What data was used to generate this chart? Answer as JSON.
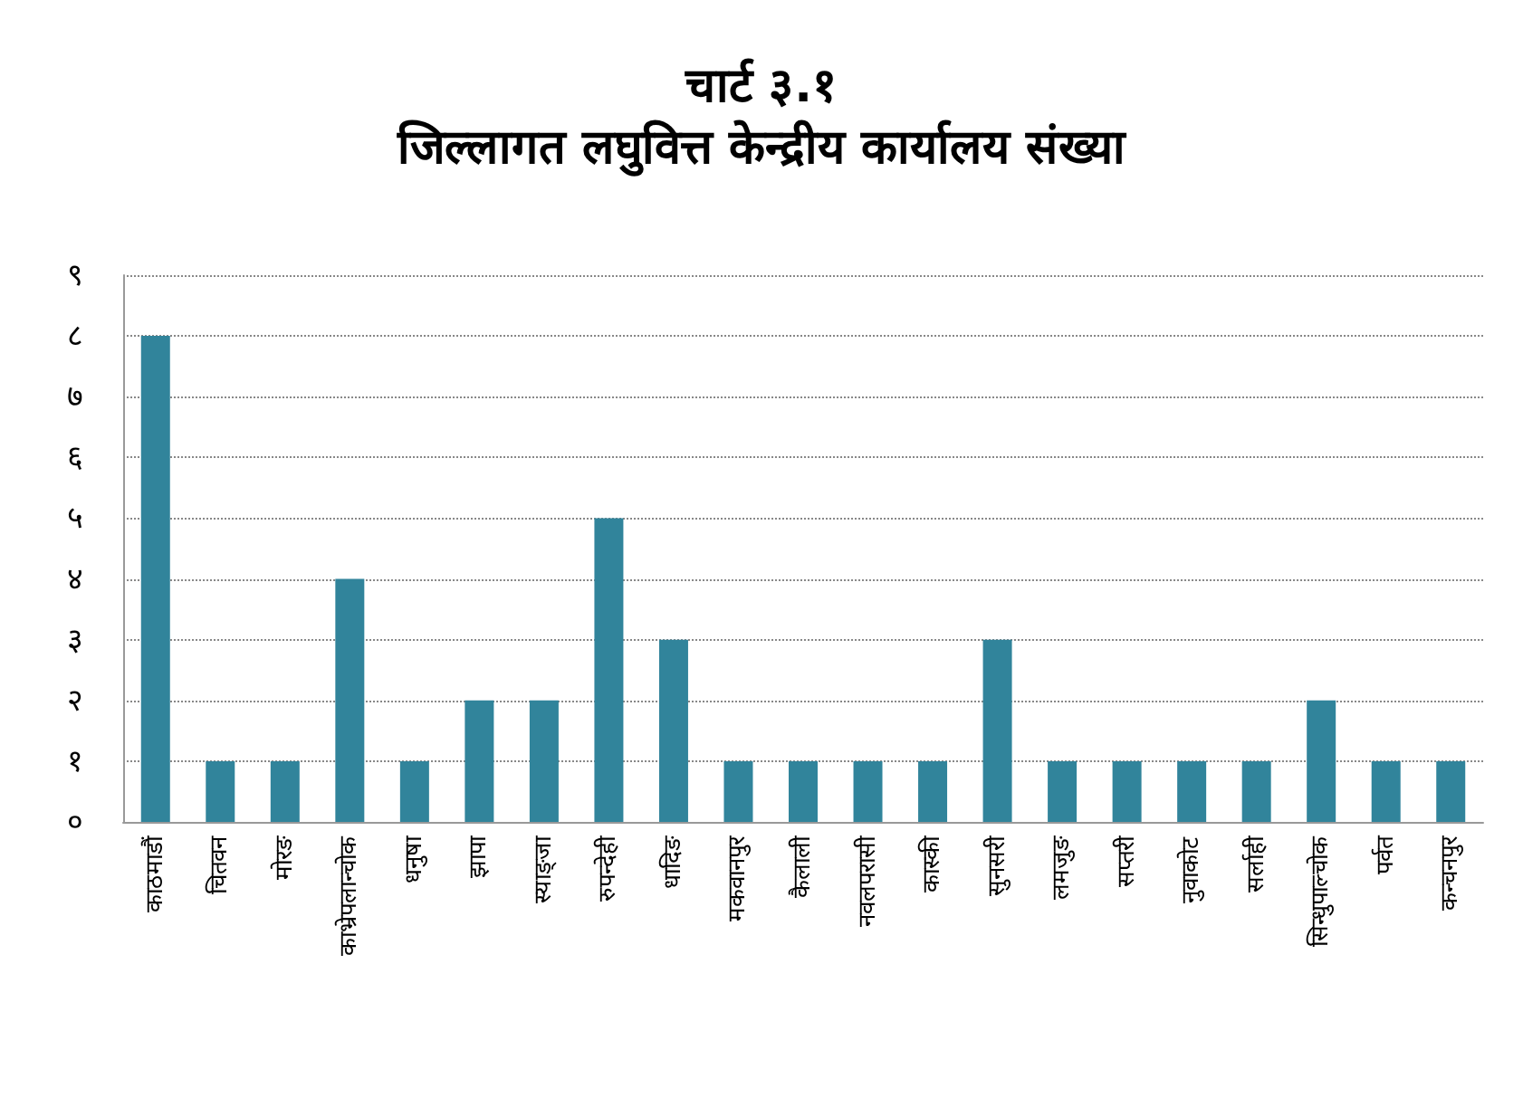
{
  "chart_data": {
    "type": "bar",
    "title": "चार्ट ३.१",
    "subtitle": "जिल्लागत लघुवित्त केन्द्रीय कार्यालय संख्या",
    "categories": [
      "काठमाडौं",
      "चितवन",
      "मोरङ",
      "काभ्रेपलान्चोक",
      "धनुषा",
      "झापा",
      "स्याङ्जा",
      "रुपन्देही",
      "धादिङ",
      "मकवानपुर",
      "कैलाली",
      "नवलपरासी",
      "कास्की",
      "सुनसरी",
      "लमजुङ",
      "सप्तरी",
      "नुवाकोट",
      "सर्लाही",
      "सिन्धुपाल्चोक",
      "पर्वत",
      "कन्चनपुर"
    ],
    "values": [
      8,
      1,
      1,
      4,
      1,
      2,
      2,
      5,
      3,
      1,
      1,
      1,
      1,
      3,
      1,
      1,
      1,
      1,
      2,
      1,
      1
    ],
    "color": "#31849b",
    "ylim": [
      0,
      9
    ],
    "yticks": [
      {
        "value": 0,
        "label": "०"
      },
      {
        "value": 1,
        "label": "१"
      },
      {
        "value": 2,
        "label": "२"
      },
      {
        "value": 3,
        "label": "३"
      },
      {
        "value": 4,
        "label": "४"
      },
      {
        "value": 5,
        "label": "५"
      },
      {
        "value": 6,
        "label": "६"
      },
      {
        "value": 7,
        "label": "७"
      },
      {
        "value": 8,
        "label": "८"
      },
      {
        "value": 9,
        "label": "९"
      }
    ],
    "grid": "y"
  }
}
